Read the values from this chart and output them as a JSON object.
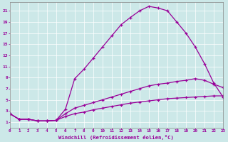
{
  "xlabel": "Windchill (Refroidissement éolien,°C)",
  "bg_color": "#cce8e8",
  "line_color": "#990099",
  "xlim": [
    0,
    23
  ],
  "ylim": [
    0,
    22.5
  ],
  "xticks": [
    0,
    1,
    2,
    3,
    4,
    5,
    6,
    7,
    8,
    9,
    10,
    11,
    12,
    13,
    14,
    15,
    16,
    17,
    18,
    19,
    20,
    21,
    22,
    23
  ],
  "yticks": [
    1,
    3,
    5,
    7,
    9,
    11,
    13,
    15,
    17,
    19,
    21
  ],
  "curve1_x": [
    0,
    1,
    2,
    3,
    4,
    5,
    6,
    7,
    8,
    9,
    10,
    11,
    12,
    13,
    14,
    15,
    16,
    17,
    18,
    19,
    20,
    21,
    22,
    23
  ],
  "curve1_y": [
    2.5,
    1.5,
    1.5,
    1.2,
    1.2,
    1.3,
    3.3,
    8.8,
    10.5,
    12.5,
    14.5,
    16.5,
    18.5,
    19.8,
    21.0,
    21.8,
    21.5,
    21.0,
    19.0,
    17.0,
    14.5,
    11.5,
    8.0,
    5.5
  ],
  "curve2_x": [
    0,
    1,
    2,
    3,
    4,
    5,
    6,
    7,
    8,
    9,
    10,
    11,
    12,
    13,
    14,
    15,
    16,
    17,
    18,
    19,
    20,
    21,
    22,
    23
  ],
  "curve2_y": [
    2.5,
    1.5,
    1.5,
    1.2,
    1.2,
    1.3,
    2.5,
    3.5,
    4.0,
    4.5,
    5.0,
    5.5,
    6.0,
    6.5,
    7.0,
    7.5,
    7.8,
    8.0,
    8.3,
    8.5,
    8.8,
    8.5,
    7.8,
    7.2
  ],
  "curve3_x": [
    0,
    1,
    2,
    3,
    4,
    5,
    6,
    7,
    8,
    9,
    10,
    11,
    12,
    13,
    14,
    15,
    16,
    17,
    18,
    19,
    20,
    21,
    22,
    23
  ],
  "curve3_y": [
    2.5,
    1.5,
    1.5,
    1.2,
    1.2,
    1.3,
    2.0,
    2.5,
    2.8,
    3.2,
    3.5,
    3.8,
    4.1,
    4.4,
    4.6,
    4.8,
    5.0,
    5.2,
    5.3,
    5.4,
    5.5,
    5.6,
    5.7,
    5.7
  ]
}
